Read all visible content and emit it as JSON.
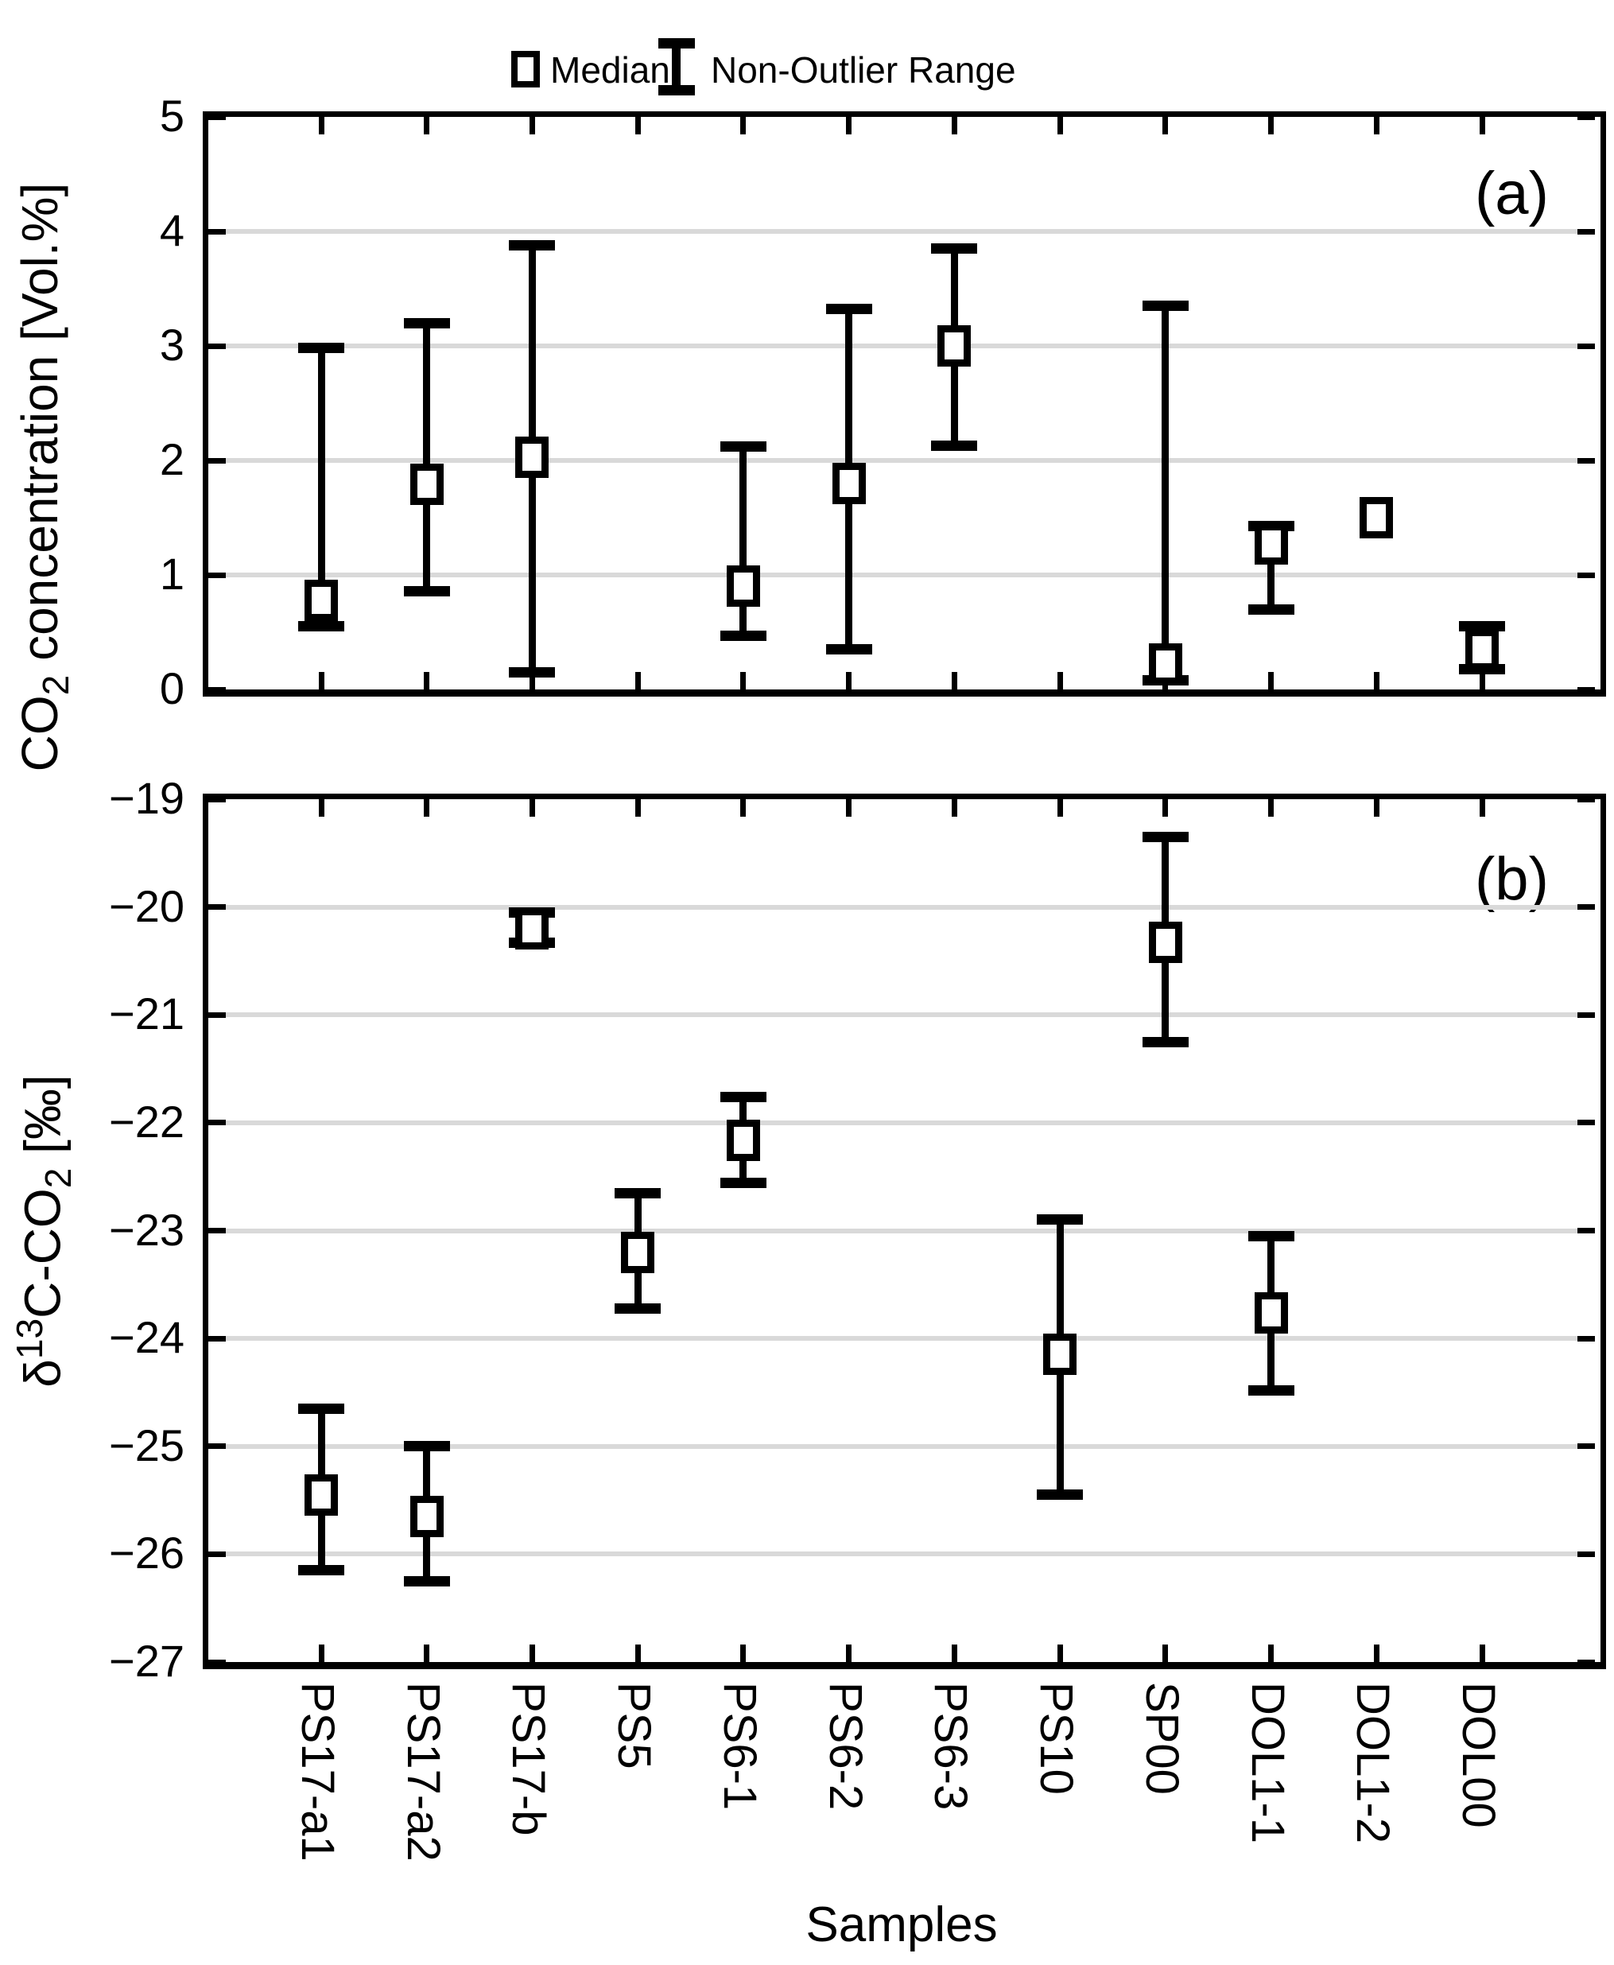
{
  "chart_data": {
    "type": "errorbar",
    "title": "",
    "xlabel": "Samples",
    "legend": {
      "median": "Median",
      "range": "Non-Outlier Range"
    },
    "legend_position": "top-center",
    "grid": true,
    "categories": [
      "PS17-a1",
      "PS17-a2",
      "PS17-b",
      "PS5",
      "PS6-1",
      "PS6-2",
      "PS6-3",
      "PS10",
      "SP00",
      "DOL1-1",
      "DOL1-2",
      "DOL00"
    ],
    "panels": [
      {
        "tag": "(a)",
        "ylabel_text": "CO2 concentration [Vol.%]",
        "ylabel_parts": [
          {
            "text": "CO"
          },
          {
            "text": "2",
            "style": "sub"
          },
          {
            "text": " concentration [Vol.%]"
          }
        ],
        "ylim": [
          0,
          5
        ],
        "ytick_step": 1,
        "series": [
          {
            "sample": "PS17-a1",
            "median": 0.78,
            "low": 0.55,
            "high": 2.98
          },
          {
            "sample": "PS17-a2",
            "median": 1.79,
            "low": 0.86,
            "high": 3.2
          },
          {
            "sample": "PS17-b",
            "median": 2.03,
            "low": 0.15,
            "high": 3.88
          },
          {
            "sample": "PS5",
            "median": null,
            "low": null,
            "high": null
          },
          {
            "sample": "PS6-1",
            "median": 0.9,
            "low": 0.47,
            "high": 2.12
          },
          {
            "sample": "PS6-2",
            "median": 1.8,
            "low": 0.35,
            "high": 3.32
          },
          {
            "sample": "PS6-3",
            "median": 3.0,
            "low": 2.13,
            "high": 3.85
          },
          {
            "sample": "PS10",
            "median": null,
            "low": null,
            "high": null
          },
          {
            "sample": "SP00",
            "median": 0.22,
            "low": 0.08,
            "high": 3.35
          },
          {
            "sample": "DOL1-1",
            "median": 1.27,
            "low": 0.7,
            "high": 1.43
          },
          {
            "sample": "DOL1-2",
            "median": 1.5,
            "low": null,
            "high": null
          },
          {
            "sample": "DOL00",
            "median": 0.35,
            "low": 0.18,
            "high": 0.55
          }
        ]
      },
      {
        "tag": "(b)",
        "ylabel_text": "delta 13C-CO2 [permil]",
        "ylabel_parts": [
          {
            "text": "δ"
          },
          {
            "text": "13",
            "style": "sup"
          },
          {
            "text": "C-CO"
          },
          {
            "text": "2",
            "style": "sub"
          },
          {
            "text": " [‰]"
          }
        ],
        "ylim": [
          -27,
          -19
        ],
        "ytick_step": 1,
        "series": [
          {
            "sample": "PS17-a1",
            "median": -25.45,
            "low": -26.15,
            "high": -24.65
          },
          {
            "sample": "PS17-a2",
            "median": -25.65,
            "low": -26.25,
            "high": -25.0
          },
          {
            "sample": "PS17-b",
            "median": -20.2,
            "low": -20.33,
            "high": -20.05
          },
          {
            "sample": "PS5",
            "median": -23.2,
            "low": -23.72,
            "high": -22.65
          },
          {
            "sample": "PS6-1",
            "median": -22.16,
            "low": -22.56,
            "high": -21.76
          },
          {
            "sample": "PS6-2",
            "median": null,
            "low": null,
            "high": null
          },
          {
            "sample": "PS6-3",
            "median": null,
            "low": null,
            "high": null
          },
          {
            "sample": "PS10",
            "median": -24.15,
            "low": -25.45,
            "high": -22.9
          },
          {
            "sample": "SP00",
            "median": -20.33,
            "low": -21.25,
            "high": -19.35
          },
          {
            "sample": "DOL1-1",
            "median": -23.76,
            "low": -24.48,
            "high": -23.05
          },
          {
            "sample": "DOL1-2",
            "median": null,
            "low": null,
            "high": null
          },
          {
            "sample": "DOL00",
            "median": null,
            "low": null,
            "high": null
          }
        ]
      }
    ],
    "colors": {
      "marker": "#000000",
      "gridline": "#d9d9d9",
      "background": "#ffffff"
    }
  }
}
